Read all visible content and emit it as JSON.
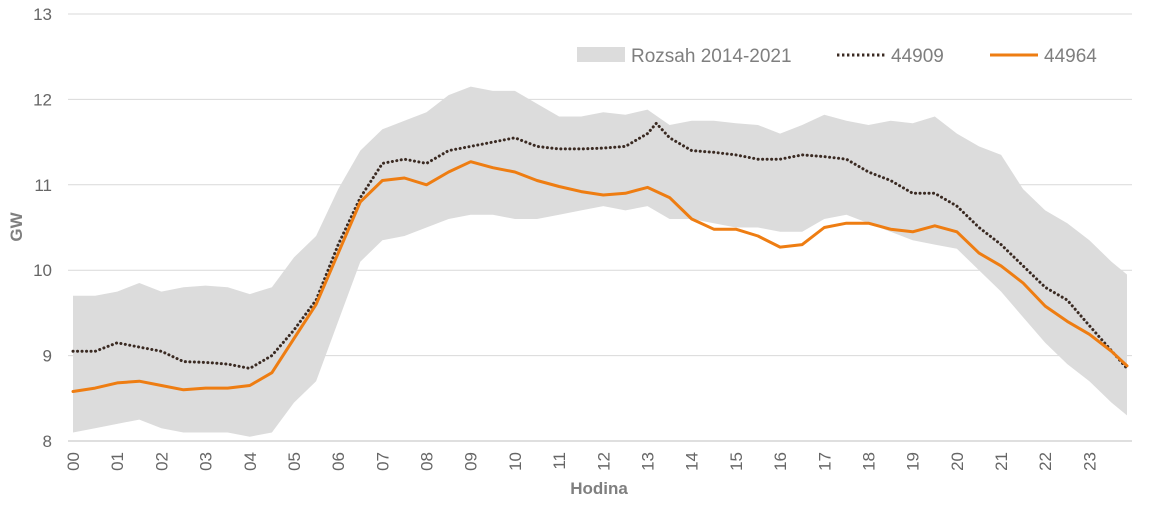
{
  "chart_data": {
    "type": "line",
    "xlabel": "Hodina",
    "ylabel": "GW",
    "ylim": [
      8,
      13
    ],
    "yticks": [
      8,
      9,
      10,
      11,
      12,
      13
    ],
    "xlim": [
      0,
      23.85
    ],
    "xtick_labels": [
      "00",
      "01",
      "02",
      "03",
      "04",
      "05",
      "06",
      "07",
      "08",
      "09",
      "10",
      "11",
      "12",
      "13",
      "14",
      "15",
      "16",
      "17",
      "18",
      "19",
      "20",
      "21",
      "22",
      "23"
    ],
    "grid": "horizontal",
    "legend_position": "top-right",
    "colors": {
      "range_fill": "#dcdcdc",
      "series_dotted": "#3a2a22",
      "series_solid": "#ee7d12",
      "grid": "#d9d9d9",
      "axis": "#bfbfbf"
    },
    "range": {
      "name": "Rozsah 2014-2021",
      "x": [
        0,
        0.5,
        1,
        1.5,
        2,
        2.5,
        3,
        3.5,
        4,
        4.5,
        5,
        5.5,
        6,
        6.5,
        7,
        7.5,
        8,
        8.5,
        9,
        9.5,
        10,
        10.5,
        11,
        11.5,
        12,
        12.5,
        13,
        13.5,
        14,
        14.5,
        15,
        15.5,
        16,
        16.5,
        17,
        17.5,
        18,
        18.5,
        19,
        19.5,
        20,
        20.5,
        21,
        21.5,
        22,
        22.5,
        23,
        23.5,
        23.85
      ],
      "upper": [
        9.7,
        9.7,
        9.75,
        9.85,
        9.75,
        9.8,
        9.82,
        9.8,
        9.72,
        9.8,
        10.15,
        10.4,
        10.95,
        11.4,
        11.65,
        11.75,
        11.85,
        12.05,
        12.15,
        12.1,
        12.1,
        11.95,
        11.8,
        11.8,
        11.85,
        11.82,
        11.88,
        11.7,
        11.75,
        11.75,
        11.72,
        11.7,
        11.6,
        11.7,
        11.82,
        11.75,
        11.7,
        11.75,
        11.72,
        11.8,
        11.6,
        11.45,
        11.35,
        10.95,
        10.7,
        10.55,
        10.35,
        10.1,
        9.95
      ],
      "lower": [
        8.1,
        8.15,
        8.2,
        8.25,
        8.15,
        8.1,
        8.1,
        8.1,
        8.05,
        8.1,
        8.45,
        8.7,
        9.4,
        10.1,
        10.35,
        10.4,
        10.5,
        10.6,
        10.65,
        10.65,
        10.6,
        10.6,
        10.65,
        10.7,
        10.75,
        10.7,
        10.75,
        10.6,
        10.6,
        10.55,
        10.5,
        10.5,
        10.45,
        10.45,
        10.6,
        10.65,
        10.55,
        10.45,
        10.35,
        10.3,
        10.25,
        10.0,
        9.75,
        9.45,
        9.15,
        8.9,
        8.7,
        8.45,
        8.3
      ]
    },
    "series": [
      {
        "name": "44909",
        "style": "dotted",
        "x": [
          0,
          0.5,
          1,
          1.5,
          2,
          2.5,
          3,
          3.5,
          4,
          4.5,
          5,
          5.5,
          6,
          6.5,
          7,
          7.5,
          8,
          8.5,
          9,
          9.5,
          10,
          10.5,
          11,
          11.5,
          12,
          12.5,
          13,
          13.2,
          13.5,
          14,
          14.5,
          15,
          15.5,
          16,
          16.5,
          17,
          17.5,
          18,
          18.5,
          19,
          19.5,
          20,
          20.5,
          21,
          21.5,
          22,
          22.5,
          23,
          23.85
        ],
        "values": [
          9.05,
          9.05,
          9.15,
          9.1,
          9.05,
          8.93,
          8.92,
          8.9,
          8.85,
          9.0,
          9.3,
          9.65,
          10.3,
          10.85,
          11.25,
          11.3,
          11.25,
          11.4,
          11.45,
          11.5,
          11.55,
          11.45,
          11.42,
          11.42,
          11.43,
          11.45,
          11.6,
          11.72,
          11.55,
          11.4,
          11.38,
          11.35,
          11.3,
          11.3,
          11.35,
          11.33,
          11.3,
          11.15,
          11.05,
          10.9,
          10.9,
          10.75,
          10.5,
          10.3,
          10.05,
          9.8,
          9.65,
          9.35,
          8.85
        ]
      },
      {
        "name": "44964",
        "style": "solid",
        "x": [
          0,
          0.5,
          1,
          1.5,
          2,
          2.5,
          3,
          3.5,
          4,
          4.5,
          5,
          5.5,
          6,
          6.5,
          7,
          7.5,
          8,
          8.5,
          9,
          9.5,
          10,
          10.5,
          11,
          11.5,
          12,
          12.5,
          13,
          13.5,
          14,
          14.5,
          15,
          15.5,
          16,
          16.5,
          17,
          17.5,
          18,
          18.5,
          19,
          19.5,
          20,
          20.5,
          21,
          21.5,
          22,
          22.5,
          23,
          23.5,
          23.85
        ],
        "values": [
          8.58,
          8.62,
          8.68,
          8.7,
          8.65,
          8.6,
          8.62,
          8.62,
          8.65,
          8.8,
          9.2,
          9.6,
          10.2,
          10.8,
          11.05,
          11.08,
          11.0,
          11.15,
          11.27,
          11.2,
          11.15,
          11.05,
          10.98,
          10.92,
          10.88,
          10.9,
          10.97,
          10.85,
          10.6,
          10.48,
          10.48,
          10.4,
          10.27,
          10.3,
          10.5,
          10.55,
          10.55,
          10.48,
          10.45,
          10.52,
          10.45,
          10.2,
          10.05,
          9.85,
          9.58,
          9.4,
          9.25,
          9.05,
          8.88
        ]
      }
    ]
  }
}
